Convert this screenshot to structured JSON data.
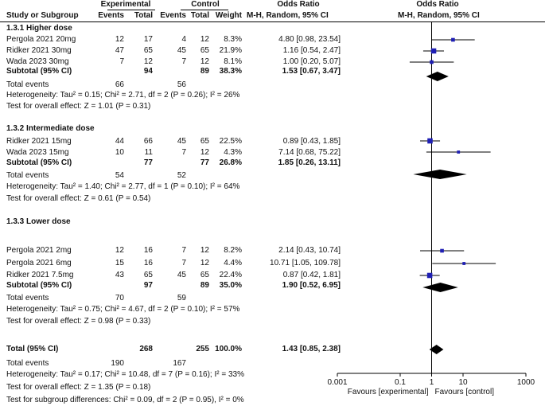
{
  "header": {
    "group_experimental": "Experimental",
    "group_control": "Control",
    "col_odds_ratio_1": "Odds Ratio",
    "col_odds_ratio_2": "Odds Ratio",
    "study": "Study or Subgroup",
    "events_e": "Events",
    "total_e": "Total",
    "events_c": "Events",
    "total_c": "Total",
    "weight": "Weight",
    "method_1": "M-H, Random, 95% CI",
    "method_2": "M-H, Random, 95% CI"
  },
  "subgroups": [
    {
      "title": "1.3.1 Higher dose",
      "studies": [
        {
          "name": "Pergola 2021 20mg",
          "ev_e": "12",
          "tot_e": "17",
          "ev_c": "4",
          "tot_c": "12",
          "weight": "8.3%",
          "ci": "4.80 [0.98, 23.54]"
        },
        {
          "name": "Ridker 2021 30mg",
          "ev_e": "47",
          "tot_e": "65",
          "ev_c": "45",
          "tot_c": "65",
          "weight": "21.9%",
          "ci": "1.16 [0.54, 2.47]"
        },
        {
          "name": "Wada 2023 30mg",
          "ev_e": "7",
          "tot_e": "12",
          "ev_c": "7",
          "tot_c": "12",
          "weight": "8.1%",
          "ci": "1.00 [0.20, 5.07]"
        }
      ],
      "subtotal": {
        "label": "Subtotal (95% CI)",
        "tot_e": "94",
        "tot_c": "89",
        "weight": "38.3%",
        "ci": "1.53 [0.67, 3.47]"
      },
      "total_events": {
        "label": "Total events",
        "ev_e": "66",
        "ev_c": "56"
      },
      "heterogeneity": "Heterogeneity: Tau² = 0.15; Chi² = 2.71, df = 2 (P = 0.26); I² = 26%",
      "overall": "Test for overall effect: Z = 1.01 (P = 0.31)"
    },
    {
      "title": "1.3.2 Intermediate dose",
      "studies": [
        {
          "name": "Ridker 2021 15mg",
          "ev_e": "44",
          "tot_e": "66",
          "ev_c": "45",
          "tot_c": "65",
          "weight": "22.5%",
          "ci": "0.89 [0.43, 1.85]"
        },
        {
          "name": "Wada 2023 15mg",
          "ev_e": "10",
          "tot_e": "11",
          "ev_c": "7",
          "tot_c": "12",
          "weight": "4.3%",
          "ci": "7.14 [0.68, 75.22]"
        }
      ],
      "subtotal": {
        "label": "Subtotal (95% CI)",
        "tot_e": "77",
        "tot_c": "77",
        "weight": "26.8%",
        "ci": "1.85 [0.26, 13.11]"
      },
      "total_events": {
        "label": "Total events",
        "ev_e": "54",
        "ev_c": "52"
      },
      "heterogeneity": "Heterogeneity: Tau² = 1.40; Chi² = 2.77, df = 1 (P = 0.10); I² = 64%",
      "overall": "Test for overall effect: Z = 0.61 (P = 0.54)"
    },
    {
      "title": "1.3.3 Lower dose",
      "studies": [
        {
          "name": "Pergola 2021 2mg",
          "ev_e": "12",
          "tot_e": "16",
          "ev_c": "7",
          "tot_c": "12",
          "weight": "8.2%",
          "ci": "2.14 [0.43, 10.74]"
        },
        {
          "name": "Pergola 2021 6mg",
          "ev_e": "15",
          "tot_e": "16",
          "ev_c": "7",
          "tot_c": "12",
          "weight": "4.4%",
          "ci": "10.71 [1.05, 109.78]"
        },
        {
          "name": "Ridker 2021 7.5mg",
          "ev_e": "43",
          "tot_e": "65",
          "ev_c": "45",
          "tot_c": "65",
          "weight": "22.4%",
          "ci": "0.87 [0.42, 1.81]"
        }
      ],
      "subtotal": {
        "label": "Subtotal (95% CI)",
        "tot_e": "97",
        "tot_c": "89",
        "weight": "35.0%",
        "ci": "1.90 [0.52, 6.95]"
      },
      "total_events": {
        "label": "Total events",
        "ev_e": "70",
        "ev_c": "59"
      },
      "heterogeneity": "Heterogeneity: Tau² = 0.75; Chi² = 4.67, df = 2 (P = 0.10); I² = 57%",
      "overall": "Test for overall effect: Z = 0.98 (P = 0.33)"
    }
  ],
  "total": {
    "label": "Total (95% CI)",
    "tot_e": "268",
    "tot_c": "255",
    "weight": "100.0%",
    "ci": "1.43 [0.85, 2.38]",
    "events_label": "Total events",
    "ev_e": "190",
    "ev_c": "167",
    "heterogeneity": "Heterogeneity: Tau² = 0.17; Chi² = 10.48, df = 7 (P = 0.16); I² = 33%",
    "overall": "Test for overall effect: Z = 1.35 (P = 0.18)",
    "subgroup_diff": "Test for subgroup differences: Chi² = 0.09, df = 2 (P = 0.95), I² = 0%"
  },
  "chart_data": {
    "type": "forest",
    "scale": "log",
    "xlim": [
      0.001,
      1000
    ],
    "null_value": 1,
    "ticks": [
      {
        "value": 0.001,
        "label": "0.001"
      },
      {
        "value": 0.1,
        "label": "0.1"
      },
      {
        "value": 1,
        "label": "1"
      },
      {
        "value": 10,
        "label": "10"
      },
      {
        "value": 1000,
        "label": "1000"
      }
    ],
    "favours_left": "Favours [experimental]",
    "favours_right": "Favours [control]",
    "studies": [
      {
        "name": "Pergola 2021 20mg",
        "or": 4.8,
        "lo": 0.98,
        "hi": 23.54,
        "weight": 8.3
      },
      {
        "name": "Ridker 2021 30mg",
        "or": 1.16,
        "lo": 0.54,
        "hi": 2.47,
        "weight": 21.9
      },
      {
        "name": "Wada 2023 30mg",
        "or": 1.0,
        "lo": 0.2,
        "hi": 5.07,
        "weight": 8.1
      },
      {
        "name": "Ridker 2021 15mg",
        "or": 0.89,
        "lo": 0.43,
        "hi": 1.85,
        "weight": 22.5
      },
      {
        "name": "Wada 2023 15mg",
        "or": 7.14,
        "lo": 0.68,
        "hi": 75.22,
        "weight": 4.3
      },
      {
        "name": "Pergola 2021 2mg",
        "or": 2.14,
        "lo": 0.43,
        "hi": 10.74,
        "weight": 8.2
      },
      {
        "name": "Pergola 2021 6mg",
        "or": 10.71,
        "lo": 1.05,
        "hi": 109.78,
        "weight": 4.4
      },
      {
        "name": "Ridker 2021 7.5mg",
        "or": 0.87,
        "lo": 0.42,
        "hi": 1.81,
        "weight": 22.4
      }
    ],
    "diamonds": [
      {
        "name": "Higher dose subtotal",
        "or": 1.53,
        "lo": 0.67,
        "hi": 3.47
      },
      {
        "name": "Intermediate dose subtotal",
        "or": 1.85,
        "lo": 0.26,
        "hi": 13.11
      },
      {
        "name": "Lower dose subtotal",
        "or": 1.9,
        "lo": 0.52,
        "hi": 6.95
      },
      {
        "name": "Overall total",
        "or": 1.43,
        "lo": 0.85,
        "hi": 2.38
      }
    ]
  }
}
